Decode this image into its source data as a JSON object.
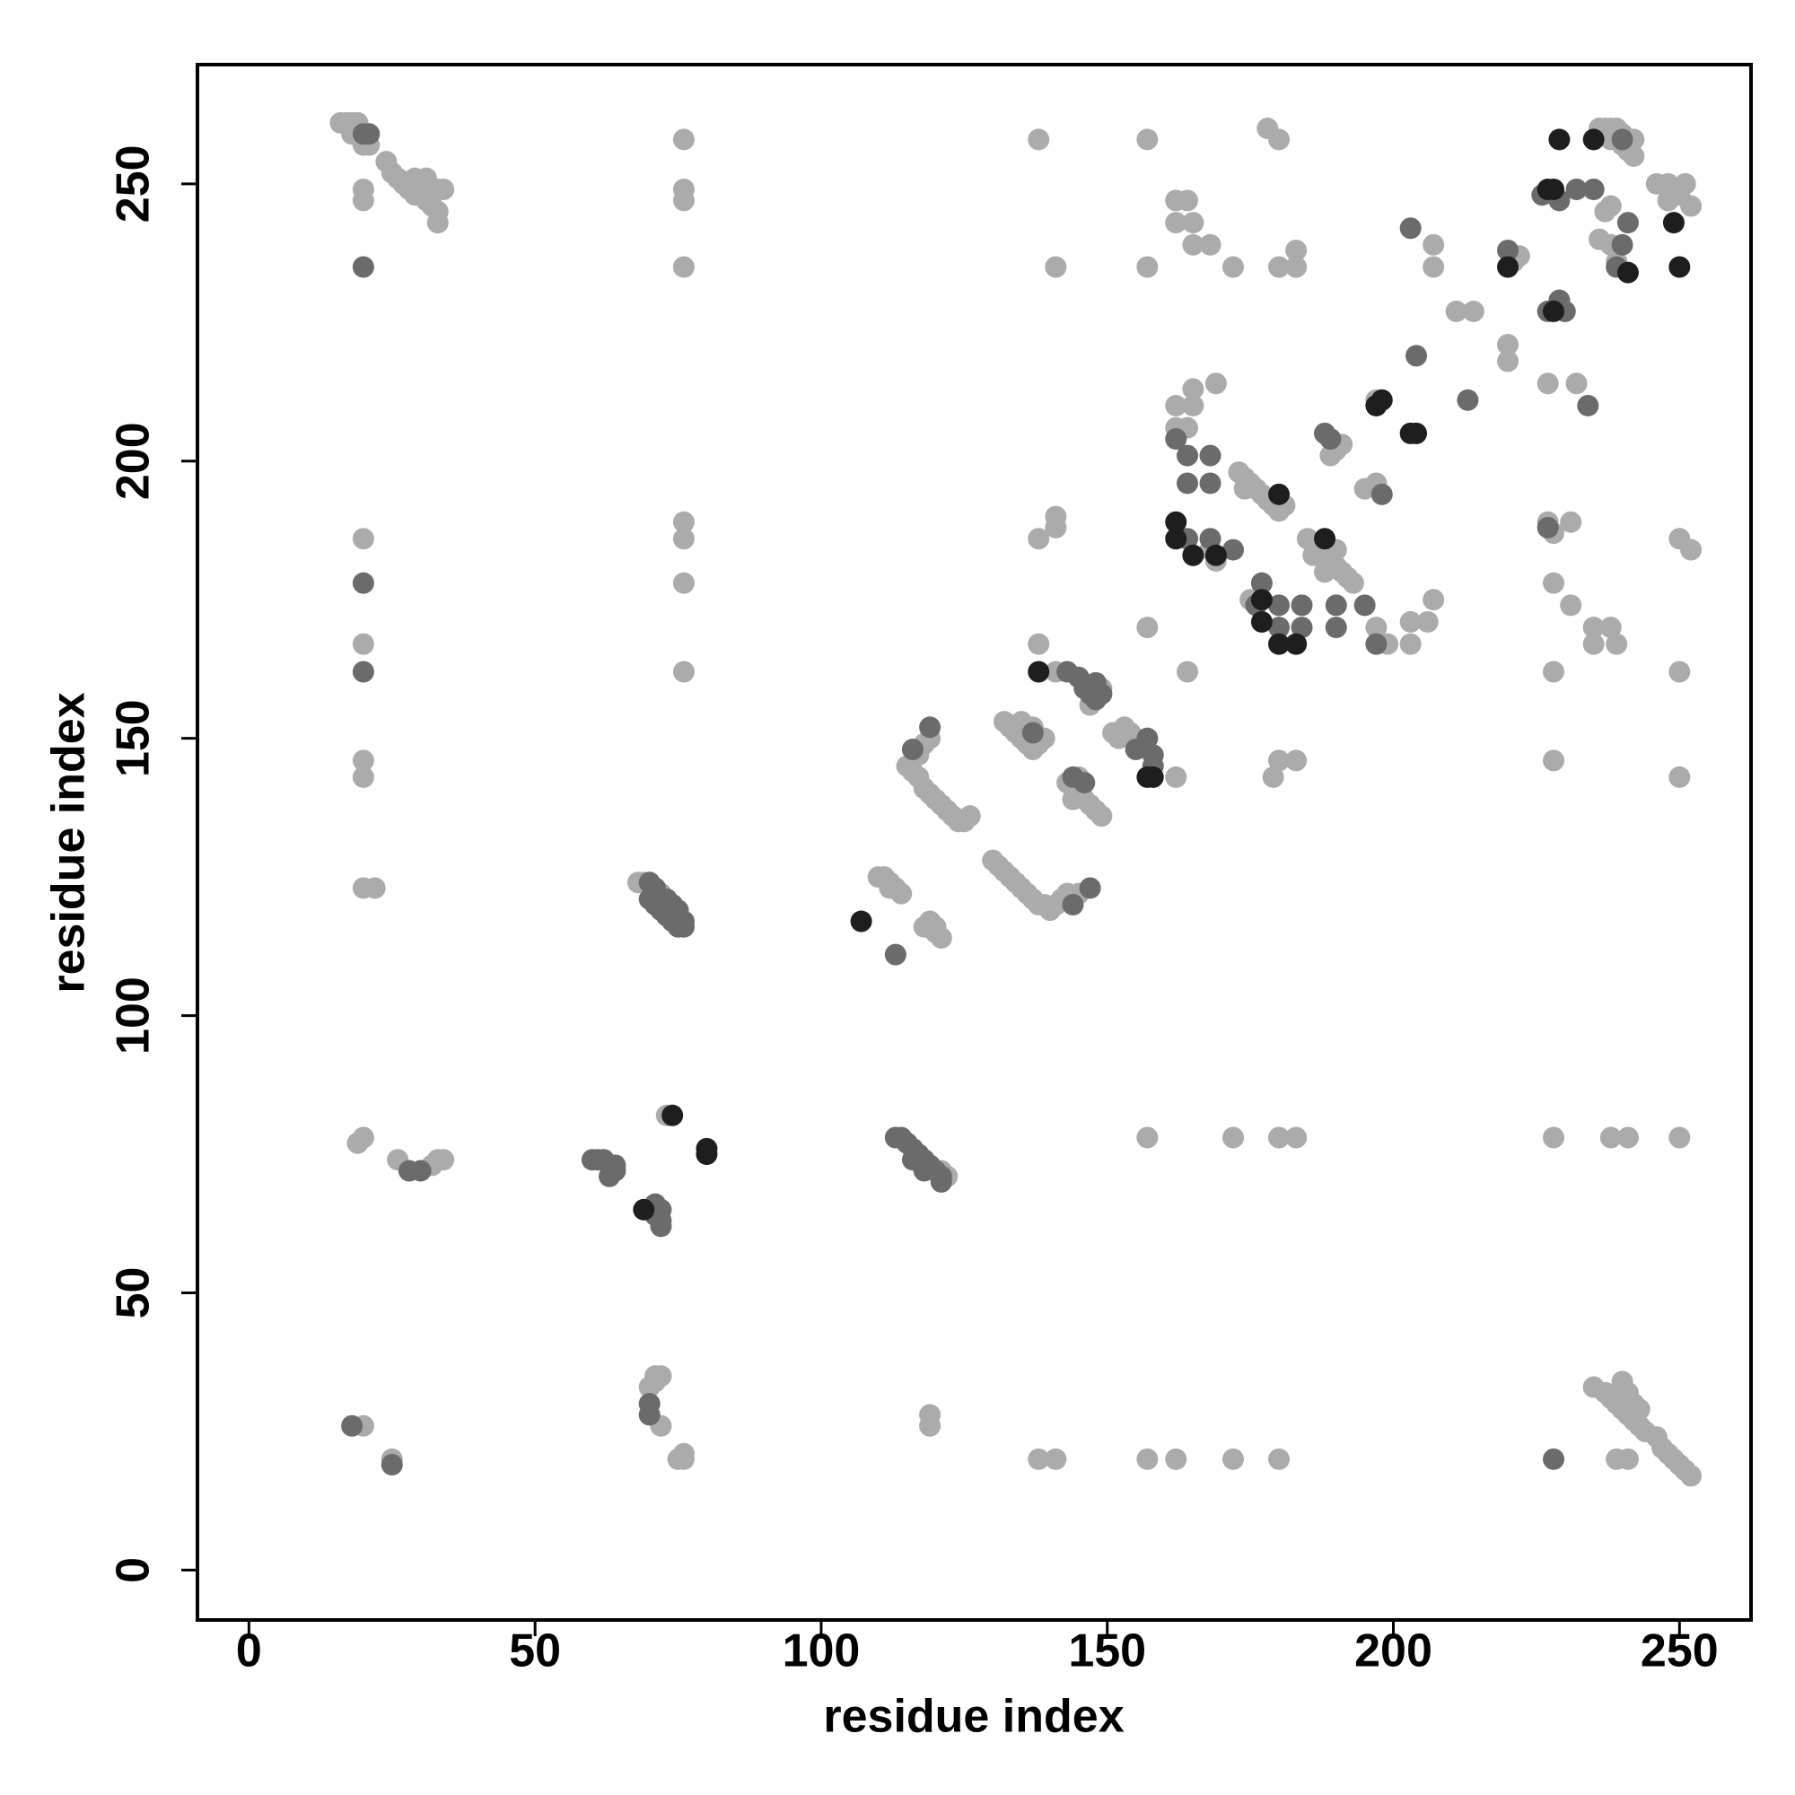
{
  "chart_data": {
    "type": "scatter",
    "x_label": "residue index",
    "y_label": "residue index",
    "xlim": [
      -9,
      262.5
    ],
    "ylim": [
      -9,
      271.5
    ],
    "xticks": [
      0,
      50,
      100,
      150,
      200,
      250
    ],
    "yticks": [
      0,
      50,
      100,
      150,
      200,
      250
    ],
    "series": [
      {
        "color": "#ababab",
        "x": [
          16,
          17,
          18,
          19,
          18,
          20,
          21,
          24,
          25,
          26,
          27,
          28,
          29,
          30,
          31,
          32,
          33,
          33,
          34,
          33,
          31,
          29,
          20,
          20,
          20,
          20,
          20,
          20,
          76,
          76,
          76,
          76,
          76,
          76,
          76,
          76,
          20,
          22,
          19,
          20,
          26,
          32,
          33,
          34,
          20,
          25,
          70,
          71,
          72,
          71,
          72,
          75,
          76,
          76,
          73,
          68,
          69,
          72,
          121,
          122,
          119,
          119,
          110,
          111,
          112,
          112,
          113,
          114,
          118,
          119,
          120,
          120,
          121,
          115,
          116,
          117,
          118,
          119,
          120,
          121,
          122,
          123,
          124,
          125,
          126,
          117,
          118,
          119,
          130,
          131,
          132,
          133,
          134,
          135,
          136,
          137,
          138,
          139,
          140,
          141,
          142,
          143,
          145,
          132,
          133,
          134,
          135,
          136,
          137,
          138,
          139,
          137,
          135,
          138,
          141,
          147,
          149,
          143,
          144,
          145,
          146,
          147,
          148,
          149,
          145,
          144,
          151,
          152,
          153,
          154,
          155,
          156,
          138,
          141,
          141,
          138,
          141,
          138,
          141,
          157,
          157,
          157,
          157,
          157,
          162,
          162,
          164,
          165,
          165,
          169,
          162,
          164,
          162,
          165,
          165,
          168,
          172,
          162,
          164,
          168,
          169,
          173,
          174,
          175,
          176,
          177,
          178,
          179,
          180,
          181,
          174,
          175,
          185,
          186,
          187,
          188,
          189,
          190,
          191,
          192,
          193,
          188,
          186,
          190,
          189,
          190,
          191,
          195,
          197,
          197,
          207,
          207,
          211,
          214,
          197,
          199,
          203,
          203,
          206,
          207,
          183,
          180,
          183,
          178,
          180,
          172,
          180,
          183,
          180,
          172,
          162,
          180,
          183,
          179,
          221,
          222,
          220,
          220,
          229,
          232,
          227,
          227,
          228,
          231,
          228,
          231,
          235,
          238,
          235,
          239,
          228,
          228,
          228,
          236,
          237,
          238,
          239,
          240,
          240,
          241,
          242,
          242,
          238,
          237,
          238,
          236,
          238,
          239,
          246,
          248,
          250,
          252,
          251,
          248,
          250,
          252,
          250,
          250,
          250,
          238,
          241,
          239,
          241,
          235,
          237,
          238,
          239,
          240,
          241,
          242,
          243,
          244,
          246,
          247,
          248,
          249,
          250,
          251,
          252,
          240,
          241,
          243,
          242
        ],
        "values": [
          261,
          261,
          261,
          261,
          259,
          257,
          257,
          254,
          252,
          251,
          250,
          249,
          248,
          248,
          247,
          246,
          245,
          243,
          249,
          249,
          251,
          251,
          249,
          247,
          186,
          167,
          146,
          143,
          258,
          249,
          247,
          235,
          189,
          186,
          178,
          162,
          123,
          123,
          77,
          78,
          74,
          73,
          74,
          74,
          26,
          20,
          33,
          34,
          35,
          35,
          26,
          20,
          21,
          20,
          82,
          124,
          124,
          122,
          72,
          71,
          28,
          26,
          125,
          125,
          124,
          123,
          123,
          122,
          116,
          117,
          116,
          115,
          114,
          145,
          144,
          143,
          141,
          140,
          139,
          138,
          137,
          136,
          135,
          135,
          136,
          147,
          149,
          150,
          128,
          127,
          126,
          125,
          124,
          123,
          122,
          121,
          120,
          120,
          119,
          120,
          121,
          122,
          122,
          153,
          152,
          151,
          150,
          149,
          148,
          149,
          150,
          152,
          153,
          167,
          162,
          156,
          159,
          142,
          141,
          140,
          139,
          138,
          137,
          136,
          143,
          139,
          151,
          150,
          152,
          151,
          150,
          149,
          186,
          188,
          190,
          20,
          20,
          258,
          235,
          170,
          258,
          235,
          78,
          20,
          210,
          206,
          206,
          210,
          213,
          214,
          247,
          247,
          243,
          243,
          239,
          239,
          235,
          143,
          162,
          184,
          182,
          198,
          197,
          196,
          195,
          194,
          193,
          192,
          191,
          192,
          195,
          175,
          186,
          185,
          184,
          183,
          182,
          181,
          180,
          179,
          178,
          180,
          183,
          184,
          201,
          202,
          203,
          195,
          196,
          211,
          239,
          235,
          227,
          227,
          170,
          167,
          171,
          167,
          171,
          175,
          238,
          235,
          235,
          260,
          258,
          78,
          78,
          78,
          20,
          20,
          20,
          146,
          146,
          143,
          236,
          237,
          218,
          221,
          229,
          214,
          214,
          189,
          187,
          189,
          178,
          174,
          170,
          170,
          167,
          167,
          162,
          146,
          78,
          260,
          260,
          260,
          260,
          259,
          257,
          256,
          255,
          258,
          258,
          245,
          246,
          240,
          239,
          236,
          250,
          250,
          248,
          246,
          250,
          247,
          186,
          184,
          162,
          143,
          78,
          78,
          78,
          20,
          20,
          33,
          32,
          31,
          30,
          29,
          28,
          27,
          26,
          25,
          24,
          22,
          21,
          20,
          19,
          18,
          17,
          34,
          32,
          29,
          30
        ]
      },
      {
        "color": "#6b6b6b",
        "x": [
          20,
          21,
          20,
          20,
          20,
          28,
          30,
          18,
          25,
          60,
          61,
          62,
          63,
          64,
          63,
          64,
          70,
          71,
          72,
          72,
          72,
          71,
          70,
          70,
          70,
          71,
          73,
          74,
          75,
          76,
          76,
          70,
          71,
          72,
          73,
          74,
          75,
          113,
          114,
          115,
          116,
          117,
          118,
          119,
          120,
          121,
          121,
          116,
          118,
          113,
          116,
          119,
          144,
          147,
          137,
          143,
          145,
          146,
          147,
          148,
          149,
          148,
          144,
          146,
          155,
          157,
          158,
          158,
          162,
          164,
          164,
          168,
          168,
          164,
          168,
          172,
          176,
          177,
          180,
          180,
          184,
          184,
          190,
          190,
          195,
          188,
          189,
          198,
          204,
          203,
          213,
          197,
          220,
          226,
          229,
          232,
          235,
          227,
          229,
          230,
          234,
          227,
          228,
          240,
          240,
          239,
          241
        ],
        "values": [
          259,
          259,
          235,
          178,
          162,
          72,
          72,
          26,
          19,
          74,
          74,
          74,
          73,
          72,
          71,
          73,
          65,
          64,
          63,
          62,
          65,
          66,
          30,
          28,
          124,
          123,
          121,
          120,
          119,
          117,
          116,
          121,
          120,
          119,
          118,
          117,
          116,
          78,
          78,
          77,
          76,
          75,
          74,
          73,
          72,
          71,
          70,
          74,
          72,
          111,
          148,
          152,
          120,
          123,
          151,
          162,
          161,
          159,
          158,
          157,
          158,
          160,
          143,
          142,
          148,
          150,
          145,
          147,
          204,
          201,
          196,
          201,
          196,
          186,
          186,
          184,
          174,
          178,
          174,
          170,
          174,
          170,
          174,
          170,
          174,
          205,
          204,
          194,
          219,
          242,
          211,
          167,
          238,
          248,
          247,
          249,
          249,
          227,
          229,
          227,
          210,
          188,
          20,
          258,
          239,
          235,
          243
        ]
      },
      {
        "color": "#1e1e1e",
        "x": [
          69,
          74,
          80,
          80,
          107,
          138,
          157,
          158,
          162,
          162,
          165,
          169,
          180,
          177,
          177,
          180,
          183,
          188,
          197,
          198,
          203,
          204,
          220,
          227,
          228,
          229,
          235,
          228,
          241,
          249,
          250
        ],
        "values": [
          65,
          82,
          76,
          75,
          117,
          162,
          143,
          143,
          189,
          186,
          183,
          183,
          194,
          175,
          171,
          167,
          167,
          186,
          210,
          211,
          205,
          205,
          235,
          249,
          249,
          258,
          258,
          227,
          234,
          243,
          235
        ]
      }
    ]
  }
}
